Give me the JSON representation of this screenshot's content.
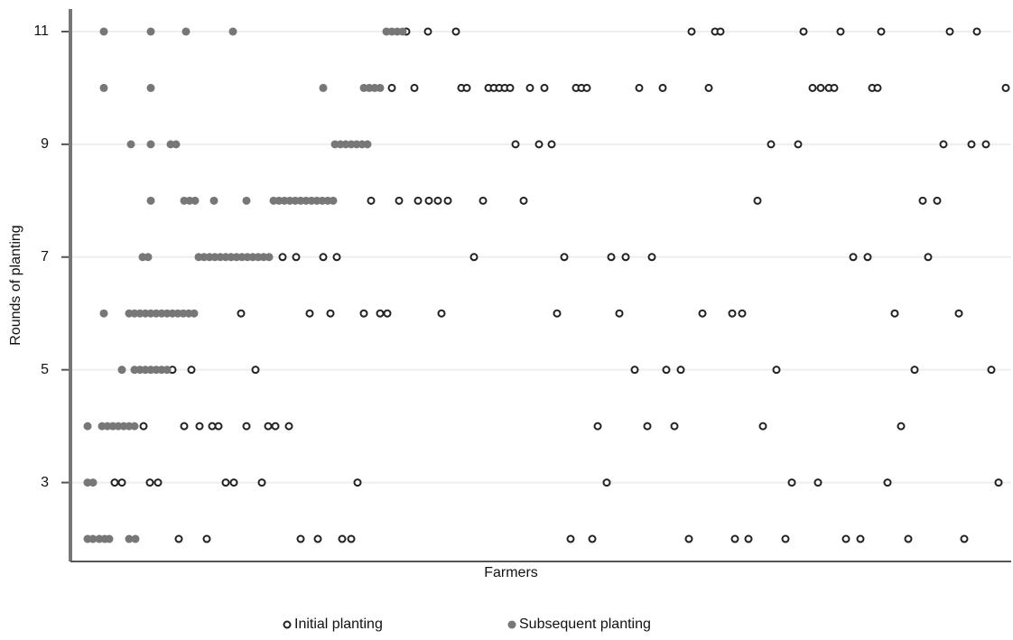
{
  "chart_data": {
    "type": "scatter",
    "x_label": "Farmers",
    "y_label": "Rounds of planting",
    "xlim": [
      78,
      1120
    ],
    "ylim": [
      1.6,
      11.4
    ],
    "yticks": [
      3,
      5,
      7,
      9,
      11
    ],
    "grid": true,
    "series": [
      {
        "name": "Initial planting",
        "color": "#222222",
        "marker_fill": false,
        "x": [
          450,
          474,
          505,
          766,
          792,
          798,
          890,
          931,
          976,
          1052,
          1082,
          434,
          459,
          511,
          517,
          541,
          547,
          553,
          559,
          565,
          587,
          603,
          638,
          644,
          650,
          708,
          734,
          785,
          900,
          909,
          918,
          924,
          966,
          972,
          1114,
          571,
          597,
          611,
          854,
          884,
          1045,
          1076,
          1092,
          411,
          442,
          463,
          475,
          485,
          496,
          535,
          580,
          839,
          1022,
          1038,
          313,
          328,
          358,
          373,
          525,
          625,
          677,
          693,
          722,
          945,
          961,
          1028,
          267,
          343,
          366,
          403,
          421,
          429,
          489,
          617,
          686,
          778,
          811,
          822,
          991,
          1062,
          191,
          212,
          283,
          703,
          738,
          754,
          860,
          1013,
          1098,
          159,
          204,
          221,
          235,
          242,
          273,
          297,
          305,
          320,
          662,
          717,
          747,
          845,
          998,
          127,
          135,
          166,
          175,
          250,
          259,
          290,
          396,
          672,
          877,
          906,
          983,
          1106,
          198,
          229,
          333,
          352,
          379,
          389,
          632,
          656,
          763,
          814,
          829,
          870,
          937,
          953,
          1006,
          1068
        ],
        "y": [
          11,
          11,
          11,
          11,
          11,
          11,
          11,
          11,
          11,
          11,
          11,
          10,
          10,
          10,
          10,
          10,
          10,
          10,
          10,
          10,
          10,
          10,
          10,
          10,
          10,
          10,
          10,
          10,
          10,
          10,
          10,
          10,
          10,
          10,
          10,
          9,
          9,
          9,
          9,
          9,
          9,
          9,
          9,
          8,
          8,
          8,
          8,
          8,
          8,
          8,
          8,
          8,
          8,
          8,
          7,
          7,
          7,
          7,
          7,
          7,
          7,
          7,
          7,
          7,
          7,
          7,
          6,
          6,
          6,
          6,
          6,
          6,
          6,
          6,
          6,
          6,
          6,
          6,
          6,
          6,
          5,
          5,
          5,
          5,
          5,
          5,
          5,
          5,
          5,
          4,
          4,
          4,
          4,
          4,
          4,
          4,
          4,
          4,
          4,
          4,
          4,
          4,
          4,
          3,
          3,
          3,
          3,
          3,
          3,
          3,
          3,
          3,
          3,
          3,
          3,
          3,
          2,
          2,
          2,
          2,
          2,
          2,
          2,
          2,
          2,
          2,
          2,
          2,
          2,
          2,
          2,
          2
        ]
      },
      {
        "name": "Subsequent planting",
        "color": "#777777",
        "marker_fill": true,
        "x": [
          115,
          167,
          206,
          258,
          428,
          434,
          440,
          446,
          115,
          167,
          358,
          403,
          409,
          415,
          421,
          145,
          167,
          189,
          195,
          371,
          377,
          383,
          389,
          395,
          401,
          407,
          167,
          204,
          210,
          216,
          237,
          273,
          303,
          309,
          315,
          321,
          327,
          333,
          339,
          345,
          351,
          357,
          363,
          369,
          158,
          164,
          220,
          226,
          232,
          238,
          244,
          250,
          256,
          262,
          268,
          274,
          280,
          286,
          292,
          298,
          115,
          143,
          149,
          155,
          161,
          167,
          173,
          179,
          185,
          191,
          197,
          203,
          209,
          215,
          135,
          149,
          155,
          161,
          167,
          173,
          179,
          185,
          97,
          113,
          119,
          125,
          131,
          137,
          143,
          149,
          97,
          103,
          97,
          103,
          110,
          116,
          121,
          143,
          150
        ],
        "y": [
          11,
          11,
          11,
          11,
          11,
          11,
          11,
          11,
          10,
          10,
          10,
          10,
          10,
          10,
          10,
          9,
          9,
          9,
          9,
          9,
          9,
          9,
          9,
          9,
          9,
          9,
          8,
          8,
          8,
          8,
          8,
          8,
          8,
          8,
          8,
          8,
          8,
          8,
          8,
          8,
          8,
          8,
          8,
          8,
          7,
          7,
          7,
          7,
          7,
          7,
          7,
          7,
          7,
          7,
          7,
          7,
          7,
          7,
          7,
          7,
          6,
          6,
          6,
          6,
          6,
          6,
          6,
          6,
          6,
          6,
          6,
          6,
          6,
          6,
          5,
          5,
          5,
          5,
          5,
          5,
          5,
          5,
          4,
          4,
          4,
          4,
          4,
          4,
          4,
          4,
          3,
          3,
          2,
          2,
          2,
          2,
          2,
          2,
          2
        ]
      }
    ]
  }
}
